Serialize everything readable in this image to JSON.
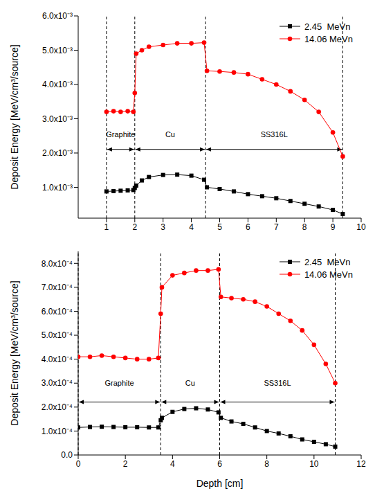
{
  "chart_data": [
    {
      "type": "line",
      "ylabel": "Deposit Energy [MeV/cm³/source]",
      "grid": false,
      "legend": "upper right",
      "xlim": [
        0,
        10
      ],
      "xticks": [
        1,
        2,
        3,
        4,
        5,
        6,
        7,
        8,
        9,
        10
      ],
      "ylim": [
        0.0001,
        0.006
      ],
      "yticks": [
        {
          "value": 0.001,
          "label": "1.0x10⁻³"
        },
        {
          "value": 0.002,
          "label": "2.0x10⁻³"
        },
        {
          "value": 0.003,
          "label": "3.0x10⁻³"
        },
        {
          "value": 0.004,
          "label": "4.0x10⁻³"
        },
        {
          "value": 0.005,
          "label": "5.0x10⁻³"
        },
        {
          "value": 0.006,
          "label": "6.0x10⁻³"
        }
      ],
      "regions": [
        {
          "label": "Graphite",
          "from": 1,
          "to": 2
        },
        {
          "label": "Cu",
          "from": 2,
          "to": 4.5
        },
        {
          "label": "SS316L",
          "from": 4.5,
          "to": 9.35
        }
      ],
      "x": [
        1.0,
        1.25,
        1.5,
        1.75,
        1.95,
        2.0,
        2.05,
        2.25,
        2.5,
        3.0,
        3.5,
        4.0,
        4.45,
        4.55,
        5.0,
        5.5,
        6.0,
        6.5,
        7.0,
        7.5,
        8.0,
        8.5,
        9.0,
        9.35
      ],
      "series": [
        {
          "name": "2.45  MeVn",
          "color": "#000000",
          "marker": "square",
          "values": [
            0.00088,
            0.00089,
            0.0009,
            0.00091,
            0.00092,
            0.00098,
            0.00105,
            0.0012,
            0.0013,
            0.00136,
            0.00137,
            0.00134,
            0.00122,
            0.001,
            0.00095,
            0.00088,
            0.0008,
            0.00074,
            0.00068,
            0.0006,
            0.00052,
            0.00044,
            0.00034,
            0.00022
          ]
        },
        {
          "name": "14.06 MeVn",
          "color": "#ff0000",
          "marker": "circle",
          "values": [
            0.0032,
            0.00322,
            0.0032,
            0.00322,
            0.0032,
            0.00375,
            0.0049,
            0.005,
            0.0051,
            0.00515,
            0.0052,
            0.0052,
            0.00522,
            0.0044,
            0.00438,
            0.00435,
            0.0043,
            0.00415,
            0.004,
            0.0038,
            0.00355,
            0.0032,
            0.0026,
            0.0019
          ]
        }
      ]
    },
    {
      "type": "line",
      "xlabel": "Depth [cm]",
      "ylabel": "Deposit Energy [MeV/cm³/source]",
      "grid": false,
      "legend": "upper right",
      "xlim": [
        0,
        12
      ],
      "xticks": [
        0,
        2,
        4,
        6,
        8,
        10,
        12
      ],
      "ylim": [
        0,
        0.00085
      ],
      "yticks": [
        {
          "value": 0,
          "label": "0.0"
        },
        {
          "value": 0.0001,
          "label": "1.0x10⁻⁴"
        },
        {
          "value": 0.0002,
          "label": "2.0x10⁻⁴"
        },
        {
          "value": 0.0003,
          "label": "3.0x10⁻⁴"
        },
        {
          "value": 0.0004,
          "label": "4.0x10⁻⁴"
        },
        {
          "value": 0.0005,
          "label": "5.0x10⁻⁴"
        },
        {
          "value": 0.0006,
          "label": "6.0x10⁻⁴"
        },
        {
          "value": 0.0007,
          "label": "7.0x10⁻⁴"
        },
        {
          "value": 0.0008,
          "label": "8.0x10⁻⁴"
        }
      ],
      "regions": [
        {
          "label": "Graphite",
          "from": 0,
          "to": 3.5
        },
        {
          "label": "Cu",
          "from": 3.5,
          "to": 6
        },
        {
          "label": "SS316L",
          "from": 6,
          "to": 10.9
        }
      ],
      "x": [
        0,
        0.5,
        1,
        1.5,
        2,
        2.5,
        3,
        3.4,
        3.5,
        3.55,
        4,
        4.5,
        5,
        5.5,
        5.95,
        6.05,
        6.5,
        7,
        7.5,
        8,
        8.5,
        9,
        9.5,
        10,
        10.5,
        10.9
      ],
      "series": [
        {
          "name": "2.45  MeVn",
          "color": "#000000",
          "marker": "square",
          "values": [
            0.000115,
            0.000117,
            0.000118,
            0.000117,
            0.000116,
            0.000116,
            0.000115,
            0.000115,
            0.000145,
            0.000155,
            0.00018,
            0.000192,
            0.000195,
            0.00019,
            0.000178,
            0.000155,
            0.00014,
            0.00013,
            0.000115,
            0.0001,
            9e-05,
            7.8e-05,
            6.5e-05,
            5.5e-05,
            4.5e-05,
            3.5e-05
          ]
        },
        {
          "name": "14.06 MeVn",
          "color": "#ff0000",
          "marker": "circle",
          "values": [
            0.00041,
            0.00041,
            0.000415,
            0.00041,
            0.000405,
            0.0004,
            0.0004,
            0.000405,
            0.00059,
            0.0007,
            0.00075,
            0.00076,
            0.00077,
            0.00077,
            0.000775,
            0.00066,
            0.000655,
            0.00065,
            0.00064,
            0.00062,
            0.00059,
            0.00056,
            0.00052,
            0.00046,
            0.00038,
            0.0003
          ]
        }
      ]
    }
  ]
}
